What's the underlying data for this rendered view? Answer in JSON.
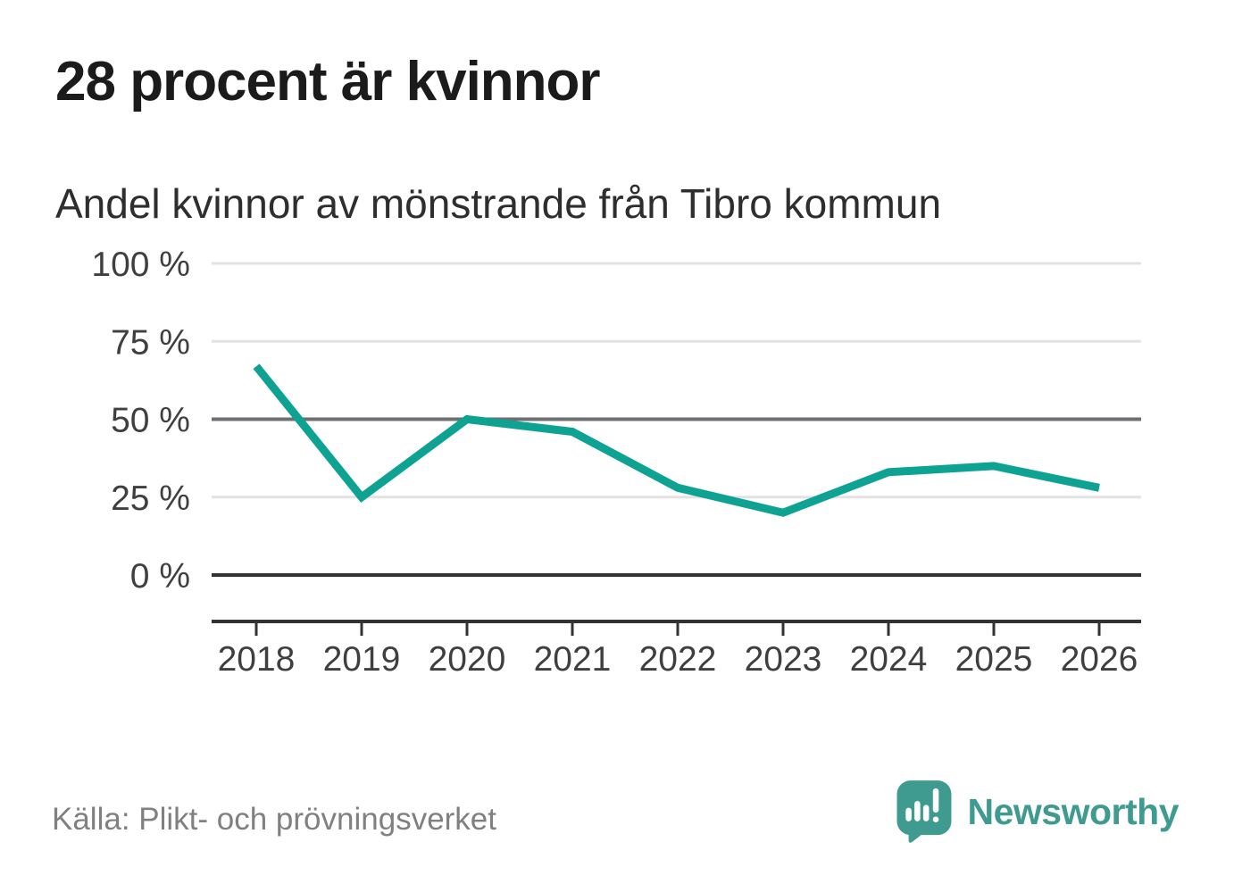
{
  "page": {
    "title": "28 procent är kvinnor",
    "subtitle": "Andel kvinnor av mönstrande från Tibro kommun",
    "source": "Källa: Plikt- och prövningsverket",
    "brand": {
      "name": "Newsworthy",
      "icon": "speech-bubble-with-bar-chart-and-exclamation"
    }
  },
  "colors": {
    "accent_line": "#0ea293",
    "brand_teal": "#3f9b8f",
    "grid_light": "#e2e2e2",
    "grid_medium": "#6e6f72",
    "axis_dark": "#333333",
    "title_text": "#1b1b1b",
    "subtitle_text": "#2e2e2e",
    "tick_text": "#3f3f3f",
    "source_text": "#808080"
  },
  "chart_data": {
    "type": "line",
    "title": "28 procent är kvinnor",
    "subtitle": "Andel kvinnor av mönstrande från Tibro kommun",
    "x": [
      "2018",
      "2019",
      "2020",
      "2021",
      "2022",
      "2023",
      "2024",
      "2025",
      "2026"
    ],
    "series": [
      {
        "name": "Andel kvinnor av mönstrande",
        "values": [
          67,
          25,
          50,
          46,
          28,
          20,
          33,
          35,
          28
        ]
      }
    ],
    "unit": "%",
    "ylim": [
      0,
      100
    ],
    "yticks": [
      {
        "value": 0,
        "label": "0 %"
      },
      {
        "value": 25,
        "label": "25 %"
      },
      {
        "value": 50,
        "label": "50 %"
      },
      {
        "value": 75,
        "label": "75 %"
      },
      {
        "value": 100,
        "label": "100 %"
      }
    ],
    "emphasized_gridline": 50,
    "baseline_gridline": 0,
    "grid": "horizontal",
    "legend": "none",
    "source": "Källa: Plikt- och prövningsverket"
  }
}
